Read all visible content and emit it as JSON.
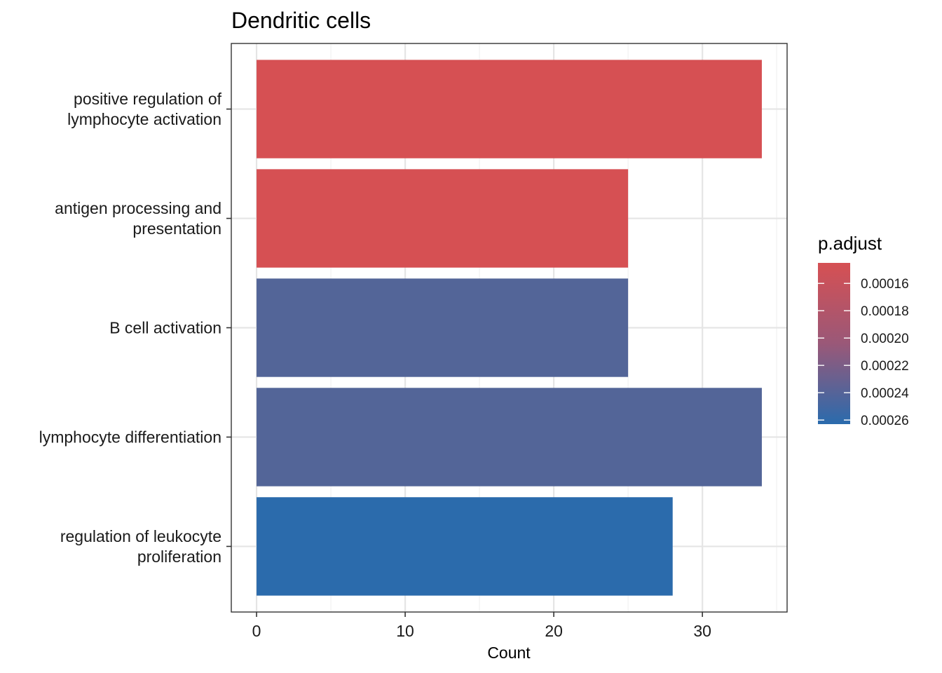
{
  "chart_data": {
    "type": "bar",
    "orientation": "horizontal",
    "title": "Dendritic cells",
    "xlabel": "Count",
    "ylabel": "",
    "xlim": [
      -1.7,
      35.7
    ],
    "x_ticks": [
      0,
      10,
      20,
      30
    ],
    "grid": true,
    "categories": [
      [
        "positive regulation of",
        "lymphocyte activation"
      ],
      [
        "antigen processing and",
        "presentation"
      ],
      [
        "B cell activation"
      ],
      [
        "lymphocyte differentiation"
      ],
      [
        "regulation of leukocyte",
        "proliferation"
      ]
    ],
    "values": [
      34,
      25,
      25,
      34,
      28
    ],
    "p_adjust": [
      0.000145,
      0.000145,
      0.000235,
      0.000235,
      0.000262
    ],
    "legend": {
      "title": "p.adjust",
      "position": "right",
      "range": [
        0.000145,
        0.000263
      ],
      "ticks": [
        0.00016,
        0.00018,
        0.0002,
        0.00022,
        0.00024,
        0.00026
      ],
      "tick_labels": [
        "0.00016",
        "0.00018",
        "0.00020",
        "0.00022",
        "0.00024",
        "0.00026"
      ],
      "color_low_value": "#2a6bad",
      "color_high_value": "#d65053"
    }
  }
}
